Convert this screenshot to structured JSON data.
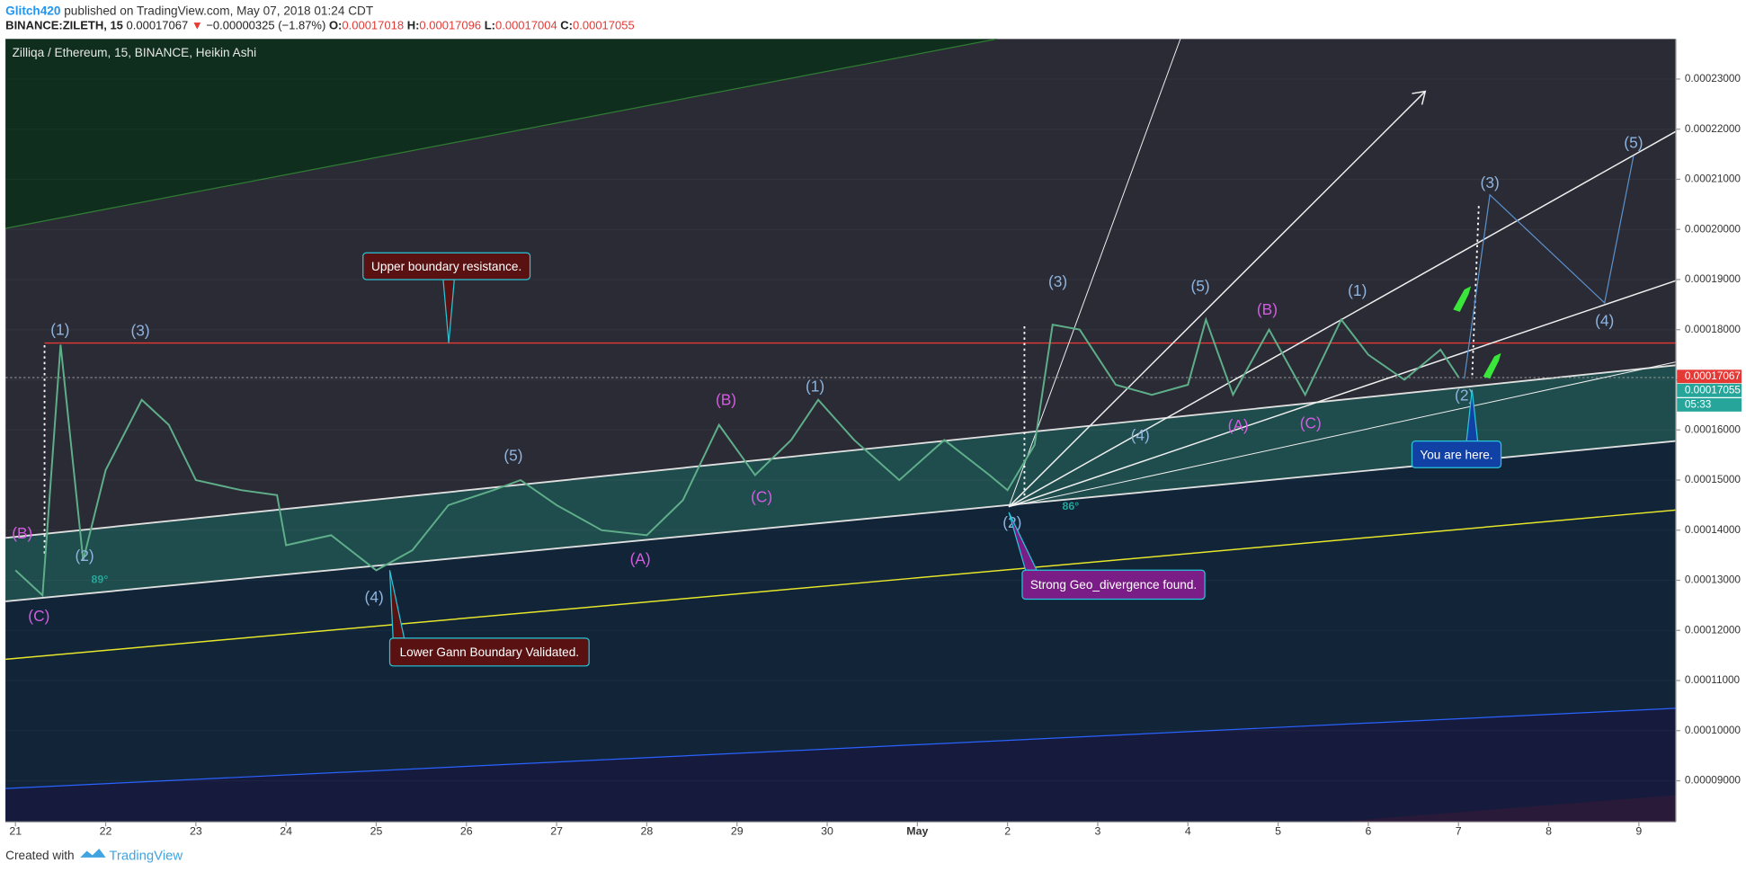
{
  "header": {
    "author": "Glitch420",
    "published": "published on TradingView.com, May 07, 2018 01:24 CDT",
    "symbol": "BINANCE:ZILETH, 15",
    "last": "0.00017067",
    "arrow": "▼",
    "change": "−0.00000325 (−1.87%)",
    "open_label": "O:",
    "open": "0.00017018",
    "high_label": "H:",
    "high": "0.00017096",
    "low_label": "L:",
    "low": "0.00017004",
    "close_label": "C:",
    "close": "0.00017055"
  },
  "chart_data": {
    "type": "line",
    "title": "Zilliqa / Ethereum, 15, BINANCE, Heikin Ashi",
    "series": [
      {
        "color": "#5fae8a",
        "x": [
          0,
          0.3,
          0.5,
          0.75,
          1.0,
          1.4,
          1.7,
          2.0,
          2.5,
          2.9,
          3.0,
          3.5,
          4.0,
          4.4,
          4.8,
          5.3,
          5.6,
          6.0,
          6.5,
          7.0,
          7.4,
          7.8,
          8.2,
          8.6,
          8.9,
          9.3,
          9.8,
          10.3,
          10.8,
          11.0,
          11.3,
          11.5,
          11.8,
          12.2,
          12.6,
          13.0,
          13.2,
          13.5,
          13.9,
          14.3,
          14.7,
          15.0,
          15.4,
          15.8,
          16.0
        ],
        "values": [
          0.000132,
          0.000127,
          0.000177,
          0.000134,
          0.000152,
          0.000166,
          0.000161,
          0.00015,
          0.000148,
          0.000147,
          0.000137,
          0.000139,
          0.000132,
          0.000136,
          0.000145,
          0.000148,
          0.00015,
          0.000145,
          0.00014,
          0.000139,
          0.000146,
          0.000161,
          0.000151,
          0.000158,
          0.000166,
          0.000158,
          0.00015,
          0.000158,
          0.000151,
          0.000148,
          0.000157,
          0.000181,
          0.00018,
          0.000169,
          0.000167,
          0.000169,
          0.000182,
          0.000167,
          0.00018,
          0.000167,
          0.000182,
          0.000175,
          0.00017,
          0.000176,
          0.00017055
        ]
      }
    ],
    "xlim": [
      -0.11,
      18.41
    ],
    "xticks": [
      {
        "value": 0,
        "label": "21"
      },
      {
        "value": 1,
        "label": "22"
      },
      {
        "value": 2,
        "label": "23"
      },
      {
        "value": 3,
        "label": "24"
      },
      {
        "value": 4,
        "label": "25"
      },
      {
        "value": 5,
        "label": "26"
      },
      {
        "value": 6,
        "label": "27"
      },
      {
        "value": 7,
        "label": "28"
      },
      {
        "value": 8,
        "label": "29"
      },
      {
        "value": 9,
        "label": "30"
      },
      {
        "value": 10,
        "label": "May"
      },
      {
        "value": 11,
        "label": "2"
      },
      {
        "value": 12,
        "label": "3"
      },
      {
        "value": 13,
        "label": "4"
      },
      {
        "value": 14,
        "label": "5"
      },
      {
        "value": 15,
        "label": "6"
      },
      {
        "value": 16,
        "label": "7"
      },
      {
        "value": 17,
        "label": "8"
      },
      {
        "value": 18,
        "label": "9"
      }
    ],
    "ylim": [
      8.18e-05,
      0.000238
    ],
    "yticks": [
      {
        "value": 9e-05,
        "label": "0.00009000"
      },
      {
        "value": 0.0001,
        "label": "0.00010000"
      },
      {
        "value": 0.00011,
        "label": "0.00011000"
      },
      {
        "value": 0.00012,
        "label": "0.00012000"
      },
      {
        "value": 0.00013,
        "label": "0.00013000"
      },
      {
        "value": 0.00014,
        "label": "0.00014000"
      },
      {
        "value": 0.00015,
        "label": "0.00015000"
      },
      {
        "value": 0.00016,
        "label": "0.00016000"
      },
      {
        "value": 0.00017,
        "label": "0.00017000"
      },
      {
        "value": 0.00018,
        "label": "0.00018000"
      },
      {
        "value": 0.00019,
        "label": "0.00019000"
      },
      {
        "value": 0.0002,
        "label": "0.00020000"
      },
      {
        "value": 0.00021,
        "label": "0.00021000"
      },
      {
        "value": 0.00022,
        "label": "0.00022000"
      },
      {
        "value": 0.00023,
        "label": "0.00023000"
      }
    ],
    "price_labels": [
      {
        "value": 0.00017067,
        "label": "0.00017067",
        "color": "#e53935"
      },
      {
        "value": 0.00017055,
        "label": "0.00017055",
        "color": "#26a69a"
      }
    ],
    "countdown": "05:33",
    "annotations": [
      "Upper boundary resistance.",
      "Lower Gann Boundary Validated.",
      "Strong Geo_divergence found.",
      "You are here."
    ],
    "wave_labels": [
      "(B)",
      "(C)",
      "(1)",
      "(2)",
      "(3)",
      "(4)",
      "(5)",
      "(A)",
      "(B)",
      "(C)",
      "(1)",
      "(2)",
      "(3)",
      "(4)",
      "(5)",
      "(A)",
      "(B)",
      "(C)",
      "(1)",
      "(2)",
      "(3)",
      "(4)",
      "(5)"
    ],
    "angle_labels": [
      "89°",
      "86°"
    ]
  },
  "footer": {
    "created": "Created with",
    "brand": "TradingView"
  }
}
